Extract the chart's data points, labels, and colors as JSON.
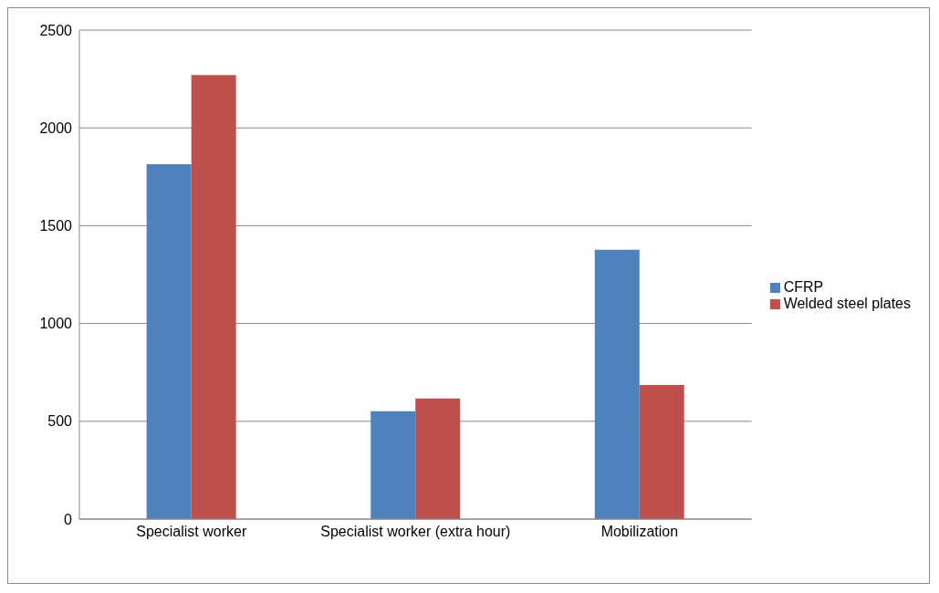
{
  "chart_data": {
    "type": "bar",
    "categories": [
      "Specialist worker",
      "Specialist worker (extra hour)",
      "Mobilization"
    ],
    "series": [
      {
        "name": "CFRP",
        "color": "#4f81bd",
        "values": [
          1814,
          552,
          1377
        ]
      },
      {
        "name": "Welded steel plates",
        "color": "#c0504d",
        "values": [
          2270,
          617,
          686
        ]
      }
    ],
    "ylim": [
      0,
      2500
    ],
    "yticks": [
      0,
      500,
      1000,
      1500,
      2000,
      2500
    ],
    "grid": "y",
    "legend": "right"
  }
}
